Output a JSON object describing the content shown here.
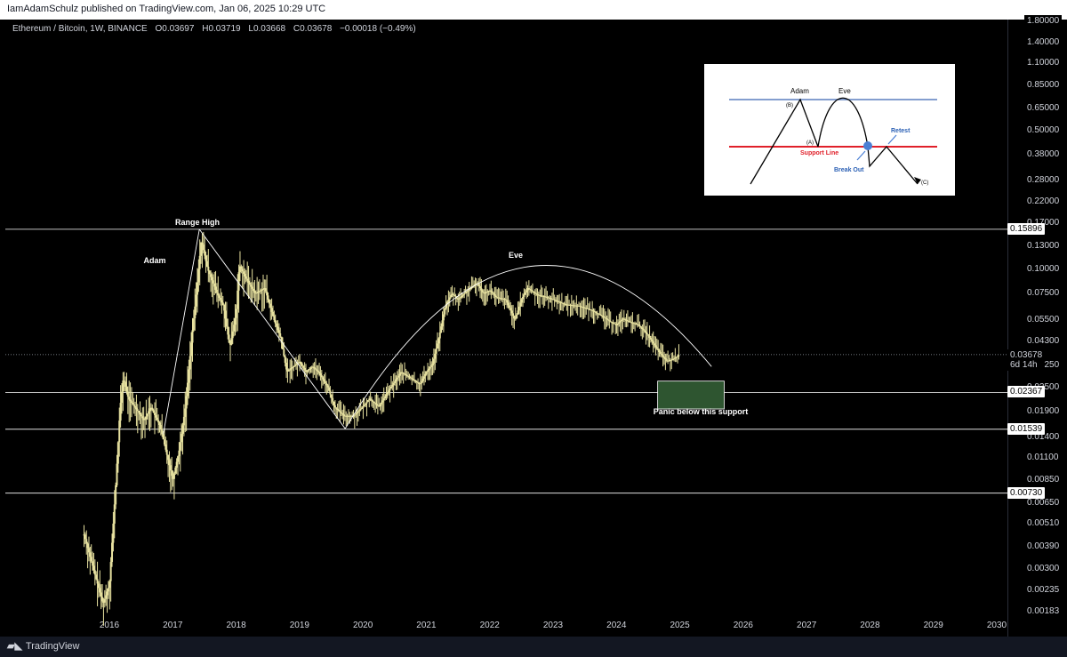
{
  "topbar": {
    "publisher_text": "IamAdamSchulz published on TradingView.com, Jan 06, 2025 10:29 UTC"
  },
  "header": {
    "symbol": "Ethereum / Bitcoin, 1W, BINANCE",
    "open_label": "O",
    "open": "0.03697",
    "high_label": "H",
    "high": "0.03719",
    "low_label": "L",
    "low": "0.03668",
    "close_label": "C",
    "close": "0.03678",
    "change": "−0.00018 (−0.49%)"
  },
  "footer": {
    "brand": "TradingView"
  },
  "colors": {
    "candle": "#e8e2a0",
    "background": "#000000",
    "line": "#ffffff",
    "support_box": "#2e5530"
  },
  "chart_data": {
    "type": "candlestick",
    "scale": "log",
    "ylim": [
      0.00183,
      1.8
    ],
    "xlim": [
      2015.6,
      2030.3
    ],
    "x_ticks": [
      "2016",
      "2017",
      "2018",
      "2019",
      "2020",
      "2021",
      "2022",
      "2023",
      "2024",
      "2025",
      "2026",
      "2027",
      "2028",
      "2029",
      "2030"
    ],
    "y_ticks": [
      "1.80000",
      "1.40000",
      "1.10000",
      "0.85000",
      "0.65000",
      "0.50000",
      "0.38000",
      "0.28000",
      "0.22000",
      "0.17000",
      "0.13000",
      "0.10000",
      "0.07500",
      "0.05500",
      "0.04300",
      "0.03250",
      "0.02500",
      "0.01900",
      "0.01400",
      "0.01100",
      "0.00850",
      "0.00650",
      "0.00510",
      "0.00390",
      "0.00300",
      "0.00235",
      "0.00183"
    ],
    "series_path": [
      [
        2015.6,
        0.0045
      ],
      [
        2015.75,
        0.003
      ],
      [
        2015.9,
        0.002
      ],
      [
        2016.0,
        0.0025
      ],
      [
        2016.1,
        0.008
      ],
      [
        2016.17,
        0.02
      ],
      [
        2016.22,
        0.028
      ],
      [
        2016.3,
        0.022
      ],
      [
        2016.45,
        0.019
      ],
      [
        2016.55,
        0.017
      ],
      [
        2016.65,
        0.02
      ],
      [
        2016.8,
        0.016
      ],
      [
        2016.95,
        0.01
      ],
      [
        2017.0,
        0.0085
      ],
      [
        2017.1,
        0.012
      ],
      [
        2017.2,
        0.02
      ],
      [
        2017.3,
        0.045
      ],
      [
        2017.38,
        0.08
      ],
      [
        2017.45,
        0.14
      ],
      [
        2017.55,
        0.1
      ],
      [
        2017.7,
        0.075
      ],
      [
        2017.8,
        0.065
      ],
      [
        2017.9,
        0.04
      ],
      [
        2018.0,
        0.06
      ],
      [
        2018.05,
        0.105
      ],
      [
        2018.15,
        0.09
      ],
      [
        2018.3,
        0.075
      ],
      [
        2018.45,
        0.08
      ],
      [
        2018.6,
        0.055
      ],
      [
        2018.7,
        0.045
      ],
      [
        2018.8,
        0.03
      ],
      [
        2018.9,
        0.032
      ],
      [
        2019.0,
        0.034
      ],
      [
        2019.1,
        0.03
      ],
      [
        2019.2,
        0.032
      ],
      [
        2019.3,
        0.03
      ],
      [
        2019.45,
        0.025
      ],
      [
        2019.55,
        0.02
      ],
      [
        2019.7,
        0.018
      ],
      [
        2019.85,
        0.018
      ],
      [
        2020.0,
        0.02
      ],
      [
        2020.1,
        0.022
      ],
      [
        2020.25,
        0.02
      ],
      [
        2020.4,
        0.024
      ],
      [
        2020.6,
        0.03
      ],
      [
        2020.75,
        0.028
      ],
      [
        2020.9,
        0.026
      ],
      [
        2021.0,
        0.03
      ],
      [
        2021.1,
        0.033
      ],
      [
        2021.2,
        0.045
      ],
      [
        2021.3,
        0.065
      ],
      [
        2021.4,
        0.075
      ],
      [
        2021.5,
        0.07
      ],
      [
        2021.6,
        0.075
      ],
      [
        2021.8,
        0.085
      ],
      [
        2021.9,
        0.075
      ],
      [
        2022.0,
        0.078
      ],
      [
        2022.1,
        0.072
      ],
      [
        2022.25,
        0.07
      ],
      [
        2022.4,
        0.055
      ],
      [
        2022.5,
        0.07
      ],
      [
        2022.6,
        0.08
      ],
      [
        2022.75,
        0.074
      ],
      [
        2022.9,
        0.072
      ],
      [
        2023.0,
        0.07
      ],
      [
        2023.2,
        0.066
      ],
      [
        2023.4,
        0.065
      ],
      [
        2023.6,
        0.062
      ],
      [
        2023.8,
        0.057
      ],
      [
        2023.9,
        0.054
      ],
      [
        2024.0,
        0.052
      ],
      [
        2024.1,
        0.056
      ],
      [
        2024.2,
        0.054
      ],
      [
        2024.35,
        0.052
      ],
      [
        2024.5,
        0.046
      ],
      [
        2024.6,
        0.041
      ],
      [
        2024.7,
        0.037
      ],
      [
        2024.8,
        0.034
      ],
      [
        2024.9,
        0.035
      ],
      [
        2025.0,
        0.0368
      ]
    ],
    "horizontal_levels": [
      {
        "price": 0.15896,
        "label": "0.15896"
      },
      {
        "price": 0.02367,
        "label": "0.02367"
      },
      {
        "price": 0.01539,
        "label": "0.01539"
      },
      {
        "price": 0.0073,
        "label": "0.00730"
      }
    ],
    "current_price": {
      "price": 0.03678,
      "label": "0.03678",
      "countdown": "6d 14h"
    },
    "trend_lines": [
      {
        "points": [
          [
            2016.85,
            0.0145
          ],
          [
            2017.42,
            0.15896
          ]
        ]
      },
      {
        "points": [
          [
            2017.42,
            0.15896
          ],
          [
            2019.72,
            0.0155
          ]
        ]
      }
    ],
    "arc": {
      "start": [
        2019.72,
        0.0155
      ],
      "peak": [
        2022.55,
        0.102
      ],
      "end": [
        2025.5,
        0.032
      ]
    },
    "support_box": {
      "x0": 2024.65,
      "x1": 2025.7,
      "y0": 0.0195,
      "y1": 0.027
    },
    "annotations": {
      "range_high": "Range High",
      "adam": "Adam",
      "eve": "Eve",
      "panic": "Panic below this support"
    },
    "inset": {
      "adam": "Adam",
      "eve": "Eve",
      "b": "(B)",
      "a": "(A)",
      "support": "Support Line",
      "retest": "Retest",
      "breakout": "Break Out",
      "c": "(C)"
    }
  }
}
